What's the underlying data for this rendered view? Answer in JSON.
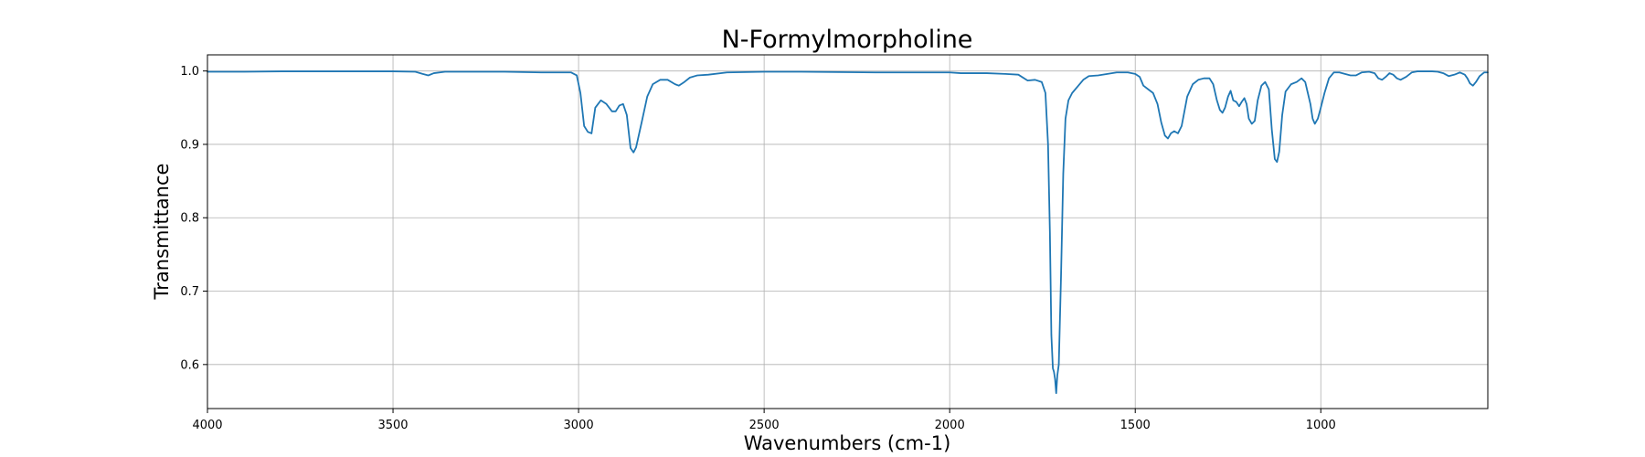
{
  "chart_data": {
    "type": "line",
    "title": "N-Formylmorpholine",
    "xlabel": "Wavenumbers (cm-1)",
    "ylabel": "Transmittance",
    "xlim": [
      4000,
      550
    ],
    "x_reversed": true,
    "ylim": [
      0.54,
      1.022
    ],
    "grid": true,
    "x_ticks": [
      4000,
      3500,
      3000,
      2500,
      2000,
      1500,
      1000
    ],
    "y_ticks": [
      0.6,
      0.7,
      0.8,
      0.9,
      1.0
    ],
    "x_tick_labels": [
      "4000",
      "3500",
      "3000",
      "2500",
      "2000",
      "1500",
      "1000"
    ],
    "y_tick_labels": [
      "0.6",
      "0.7",
      "0.8",
      "0.9",
      "1.0"
    ],
    "series": [
      {
        "color": "#1f77b4",
        "points": [
          [
            4000,
            0.999
          ],
          [
            3900,
            0.999
          ],
          [
            3800,
            0.9995
          ],
          [
            3700,
            0.9995
          ],
          [
            3600,
            0.9995
          ],
          [
            3500,
            0.9995
          ],
          [
            3440,
            0.999
          ],
          [
            3420,
            0.996
          ],
          [
            3405,
            0.994
          ],
          [
            3390,
            0.997
          ],
          [
            3360,
            0.999
          ],
          [
            3300,
            0.999
          ],
          [
            3200,
            0.999
          ],
          [
            3100,
            0.998
          ],
          [
            3020,
            0.998
          ],
          [
            3005,
            0.994
          ],
          [
            2995,
            0.97
          ],
          [
            2985,
            0.925
          ],
          [
            2975,
            0.917
          ],
          [
            2965,
            0.915
          ],
          [
            2955,
            0.95
          ],
          [
            2940,
            0.96
          ],
          [
            2925,
            0.955
          ],
          [
            2910,
            0.945
          ],
          [
            2900,
            0.945
          ],
          [
            2890,
            0.953
          ],
          [
            2880,
            0.955
          ],
          [
            2870,
            0.94
          ],
          [
            2860,
            0.895
          ],
          [
            2852,
            0.889
          ],
          [
            2845,
            0.896
          ],
          [
            2830,
            0.93
          ],
          [
            2815,
            0.965
          ],
          [
            2800,
            0.982
          ],
          [
            2780,
            0.988
          ],
          [
            2760,
            0.988
          ],
          [
            2740,
            0.982
          ],
          [
            2730,
            0.98
          ],
          [
            2715,
            0.985
          ],
          [
            2700,
            0.991
          ],
          [
            2680,
            0.994
          ],
          [
            2650,
            0.995
          ],
          [
            2600,
            0.998
          ],
          [
            2500,
            0.999
          ],
          [
            2400,
            0.999
          ],
          [
            2300,
            0.9985
          ],
          [
            2200,
            0.998
          ],
          [
            2100,
            0.998
          ],
          [
            2000,
            0.998
          ],
          [
            1970,
            0.997
          ],
          [
            1940,
            0.997
          ],
          [
            1900,
            0.997
          ],
          [
            1850,
            0.996
          ],
          [
            1815,
            0.995
          ],
          [
            1790,
            0.987
          ],
          [
            1770,
            0.988
          ],
          [
            1752,
            0.985
          ],
          [
            1742,
            0.97
          ],
          [
            1735,
            0.9
          ],
          [
            1730,
            0.78
          ],
          [
            1726,
            0.64
          ],
          [
            1722,
            0.595
          ],
          [
            1719,
            0.59
          ],
          [
            1716,
            0.58
          ],
          [
            1713,
            0.561
          ],
          [
            1710,
            0.585
          ],
          [
            1706,
            0.6
          ],
          [
            1700,
            0.72
          ],
          [
            1694,
            0.86
          ],
          [
            1688,
            0.935
          ],
          [
            1680,
            0.96
          ],
          [
            1670,
            0.97
          ],
          [
            1655,
            0.979
          ],
          [
            1640,
            0.988
          ],
          [
            1625,
            0.993
          ],
          [
            1600,
            0.994
          ],
          [
            1575,
            0.996
          ],
          [
            1550,
            0.998
          ],
          [
            1520,
            0.998
          ],
          [
            1500,
            0.996
          ],
          [
            1488,
            0.992
          ],
          [
            1478,
            0.98
          ],
          [
            1465,
            0.975
          ],
          [
            1452,
            0.97
          ],
          [
            1440,
            0.955
          ],
          [
            1430,
            0.93
          ],
          [
            1420,
            0.912
          ],
          [
            1412,
            0.908
          ],
          [
            1404,
            0.915
          ],
          [
            1395,
            0.918
          ],
          [
            1385,
            0.915
          ],
          [
            1375,
            0.925
          ],
          [
            1360,
            0.965
          ],
          [
            1345,
            0.982
          ],
          [
            1330,
            0.988
          ],
          [
            1315,
            0.99
          ],
          [
            1300,
            0.99
          ],
          [
            1290,
            0.982
          ],
          [
            1280,
            0.96
          ],
          [
            1272,
            0.947
          ],
          [
            1265,
            0.943
          ],
          [
            1258,
            0.95
          ],
          [
            1250,
            0.965
          ],
          [
            1243,
            0.973
          ],
          [
            1236,
            0.96
          ],
          [
            1228,
            0.958
          ],
          [
            1220,
            0.952
          ],
          [
            1213,
            0.958
          ],
          [
            1206,
            0.963
          ],
          [
            1200,
            0.955
          ],
          [
            1194,
            0.935
          ],
          [
            1186,
            0.928
          ],
          [
            1178,
            0.932
          ],
          [
            1170,
            0.96
          ],
          [
            1160,
            0.98
          ],
          [
            1150,
            0.985
          ],
          [
            1140,
            0.975
          ],
          [
            1132,
            0.92
          ],
          [
            1124,
            0.88
          ],
          [
            1118,
            0.876
          ],
          [
            1112,
            0.89
          ],
          [
            1104,
            0.94
          ],
          [
            1095,
            0.972
          ],
          [
            1080,
            0.982
          ],
          [
            1065,
            0.985
          ],
          [
            1052,
            0.99
          ],
          [
            1042,
            0.985
          ],
          [
            1035,
            0.97
          ],
          [
            1028,
            0.955
          ],
          [
            1022,
            0.935
          ],
          [
            1016,
            0.928
          ],
          [
            1008,
            0.935
          ],
          [
            1000,
            0.95
          ],
          [
            990,
            0.97
          ],
          [
            978,
            0.99
          ],
          [
            965,
            0.998
          ],
          [
            950,
            0.998
          ],
          [
            935,
            0.996
          ],
          [
            920,
            0.994
          ],
          [
            905,
            0.994
          ],
          [
            890,
            0.998
          ],
          [
            870,
            0.999
          ],
          [
            855,
            0.997
          ],
          [
            845,
            0.99
          ],
          [
            835,
            0.988
          ],
          [
            825,
            0.992
          ],
          [
            815,
            0.997
          ],
          [
            805,
            0.995
          ],
          [
            795,
            0.99
          ],
          [
            785,
            0.988
          ],
          [
            770,
            0.992
          ],
          [
            755,
            0.998
          ],
          [
            740,
            0.9995
          ],
          [
            720,
            0.9995
          ],
          [
            700,
            0.9995
          ],
          [
            685,
            0.999
          ],
          [
            670,
            0.997
          ],
          [
            655,
            0.993
          ],
          [
            640,
            0.995
          ],
          [
            625,
            0.998
          ],
          [
            612,
            0.995
          ],
          [
            605,
            0.99
          ],
          [
            598,
            0.983
          ],
          [
            590,
            0.98
          ],
          [
            582,
            0.985
          ],
          [
            572,
            0.993
          ],
          [
            560,
            0.998
          ],
          [
            550,
            0.998
          ]
        ]
      }
    ]
  }
}
